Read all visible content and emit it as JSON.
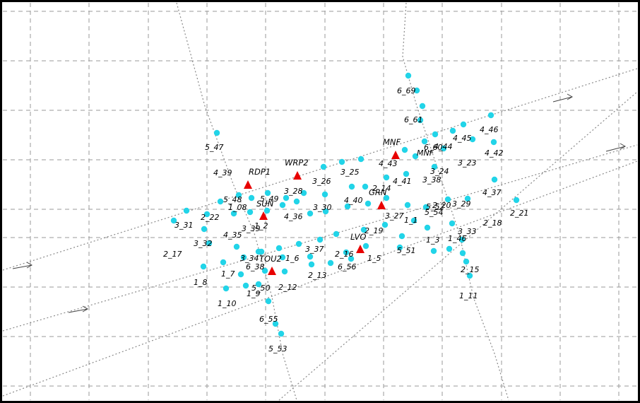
{
  "stations": [
    {
      "name": "RDP1"
    },
    {
      "name": "WRP2"
    },
    {
      "name": "MNF"
    },
    {
      "name": "SUN"
    },
    {
      "name": "GRN"
    },
    {
      "name": "LVO"
    },
    {
      "name": "TOU2"
    }
  ],
  "shotpoint_labels": [
    "6_69",
    "6_61",
    "5_47",
    "4_46",
    "4_45",
    "4_44",
    "6_60",
    "MNF",
    "4_43",
    "4_42",
    "3_23",
    "3_24",
    "3_25",
    "4_41",
    "3_26",
    "4_40",
    "3_28",
    "4_39",
    "5_48",
    "5_49",
    "1_08",
    "4_37",
    "2_22",
    "4_36",
    "3_30",
    "3_29",
    "2_21",
    "1_1",
    "2_19",
    "2_18",
    "1_2",
    "3_31",
    "4_35",
    "3_32",
    "3_33",
    "1_3",
    "1_46",
    "3_37",
    "2_16",
    "2_17",
    "3_34",
    "5_51",
    "1_5",
    "1_6",
    "2_15",
    "6_56",
    "1_7",
    "2_13",
    "1_8",
    "2_12",
    "1_9",
    "1_10",
    "1_11",
    "6_55",
    "5_53",
    "5_54",
    "2_20",
    "3_38",
    "3_39",
    "5_50",
    "5_52",
    "6_38",
    "2_14",
    "3_27",
    "2_19"
  ]
}
